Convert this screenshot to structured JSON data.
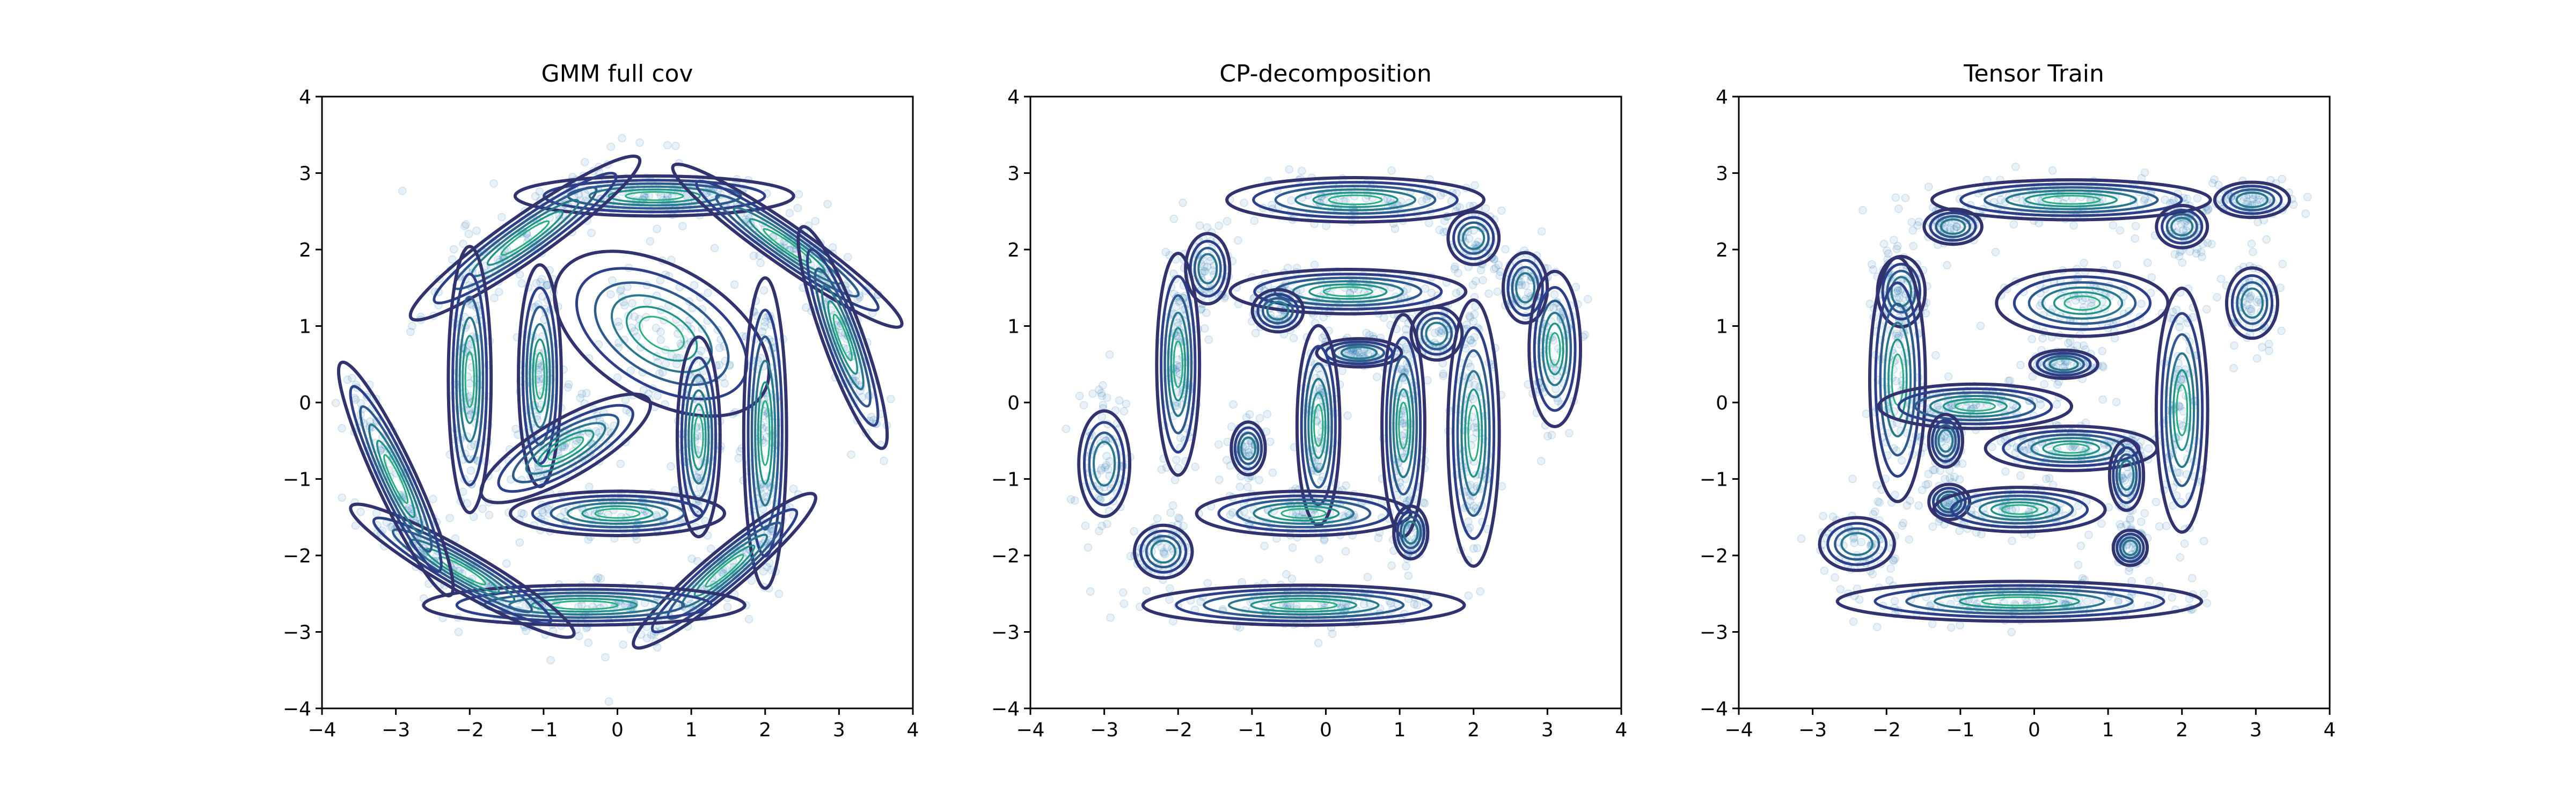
{
  "chart_data": [
    {
      "type": "scatter",
      "title": "GMM full cov",
      "xlabel": "",
      "ylabel": "",
      "xlim": [
        -4,
        4
      ],
      "ylim": [
        -4,
        4
      ],
      "xticks": [
        "−4",
        "−3",
        "−2",
        "−1",
        "0",
        "1",
        "2",
        "3",
        "4"
      ],
      "yticks": [
        "−4",
        "−3",
        "−2",
        "−1",
        "0",
        "1",
        "2",
        "3",
        "4"
      ],
      "grid": false,
      "scatter_color": "#1f77b4",
      "contour_colormap": "viridis",
      "components": [
        {
          "x": 0.5,
          "y": 2.7,
          "sx": 0.65,
          "sy": 0.09,
          "rot": 0
        },
        {
          "x": 2.3,
          "y": 2.05,
          "sx": 0.65,
          "sy": 0.09,
          "rot": -35
        },
        {
          "x": 3.05,
          "y": 0.85,
          "sx": 0.55,
          "sy": 0.09,
          "rot": -70
        },
        {
          "x": -1.25,
          "y": 2.15,
          "sx": 0.65,
          "sy": 0.1,
          "rot": 35
        },
        {
          "x": -2.0,
          "y": 0.3,
          "sx": 0.1,
          "sy": 0.6,
          "rot": 0
        },
        {
          "x": -1.05,
          "y": 0.35,
          "sx": 0.1,
          "sy": 0.5,
          "rot": 0
        },
        {
          "x": 0.6,
          "y": 0.9,
          "sx": 0.55,
          "sy": 0.3,
          "rot": -30
        },
        {
          "x": -0.7,
          "y": -0.6,
          "sx": 0.45,
          "sy": 0.13,
          "rot": 30
        },
        {
          "x": 1.1,
          "y": -0.45,
          "sx": 0.1,
          "sy": 0.45,
          "rot": 0
        },
        {
          "x": 2.0,
          "y": -0.4,
          "sx": 0.1,
          "sy": 0.7,
          "rot": 0
        },
        {
          "x": 0.0,
          "y": -1.45,
          "sx": 0.5,
          "sy": 0.1,
          "rot": 0
        },
        {
          "x": 1.45,
          "y": -2.2,
          "sx": 0.55,
          "sy": 0.09,
          "rot": 40
        },
        {
          "x": -0.45,
          "y": -2.65,
          "sx": 0.75,
          "sy": 0.09,
          "rot": 0
        },
        {
          "x": -2.1,
          "y": -2.2,
          "sx": 0.6,
          "sy": 0.09,
          "rot": -30
        },
        {
          "x": -3.0,
          "y": -1.0,
          "sx": 0.6,
          "sy": 0.09,
          "rot": -65
        }
      ]
    },
    {
      "type": "scatter",
      "title": "CP-decomposition",
      "xlabel": "",
      "ylabel": "",
      "xlim": [
        -4,
        4
      ],
      "ylim": [
        -4,
        4
      ],
      "xticks": [
        "−4",
        "−3",
        "−2",
        "−1",
        "0",
        "1",
        "2",
        "3",
        "4"
      ],
      "yticks": [
        "−4",
        "−3",
        "−2",
        "−1",
        "0",
        "1",
        "2",
        "3",
        "4"
      ],
      "grid": false,
      "scatter_color": "#1f77b4",
      "contour_colormap": "viridis",
      "components": [
        {
          "x": 0.4,
          "y": 2.65,
          "sx": 0.6,
          "sy": 0.1,
          "rot": 0
        },
        {
          "x": 2.0,
          "y": 2.15,
          "sx": 0.15,
          "sy": 0.15,
          "rot": 0
        },
        {
          "x": 2.7,
          "y": 1.5,
          "sx": 0.13,
          "sy": 0.2,
          "rot": 0
        },
        {
          "x": 3.1,
          "y": 0.7,
          "sx": 0.12,
          "sy": 0.35,
          "rot": 0
        },
        {
          "x": -1.6,
          "y": 1.75,
          "sx": 0.13,
          "sy": 0.2,
          "rot": 0
        },
        {
          "x": -2.0,
          "y": 0.5,
          "sx": 0.1,
          "sy": 0.5,
          "rot": 0
        },
        {
          "x": 0.3,
          "y": 1.45,
          "sx": 0.55,
          "sy": 0.1,
          "rot": 0
        },
        {
          "x": -0.65,
          "y": 1.2,
          "sx": 0.15,
          "sy": 0.12,
          "rot": 0
        },
        {
          "x": 1.5,
          "y": 0.9,
          "sx": 0.15,
          "sy": 0.15,
          "rot": 0
        },
        {
          "x": 0.45,
          "y": 0.65,
          "sx": 0.25,
          "sy": 0.08,
          "rot": 0
        },
        {
          "x": -1.05,
          "y": -0.6,
          "sx": 0.1,
          "sy": 0.15,
          "rot": 0
        },
        {
          "x": -0.1,
          "y": -0.3,
          "sx": 0.1,
          "sy": 0.45,
          "rot": 0
        },
        {
          "x": 1.05,
          "y": -0.3,
          "sx": 0.1,
          "sy": 0.5,
          "rot": 0
        },
        {
          "x": 2.0,
          "y": -0.4,
          "sx": 0.12,
          "sy": 0.6,
          "rot": 0
        },
        {
          "x": -0.3,
          "y": -1.45,
          "sx": 0.5,
          "sy": 0.1,
          "rot": 0
        },
        {
          "x": 1.15,
          "y": -1.7,
          "sx": 0.1,
          "sy": 0.15,
          "rot": 0
        },
        {
          "x": -3.0,
          "y": -0.8,
          "sx": 0.15,
          "sy": 0.3,
          "rot": 0
        },
        {
          "x": -2.2,
          "y": -1.95,
          "sx": 0.17,
          "sy": 0.15,
          "rot": 0
        },
        {
          "x": -0.3,
          "y": -2.65,
          "sx": 0.75,
          "sy": 0.09,
          "rot": 0
        }
      ]
    },
    {
      "type": "scatter",
      "title": "Tensor Train",
      "xlabel": "",
      "ylabel": "",
      "xlim": [
        -4,
        4
      ],
      "ylim": [
        -4,
        4
      ],
      "xticks": [
        "−4",
        "−3",
        "−2",
        "−1",
        "0",
        "1",
        "2",
        "3",
        "4"
      ],
      "yticks": [
        "−4",
        "−3",
        "−2",
        "−1",
        "0",
        "1",
        "2",
        "3",
        "4"
      ],
      "grid": false,
      "scatter_color": "#1f77b4",
      "contour_colormap": "viridis",
      "components": [
        {
          "x": 0.5,
          "y": 2.65,
          "sx": 0.65,
          "sy": 0.09,
          "rot": 0
        },
        {
          "x": -1.1,
          "y": 2.3,
          "sx": 0.17,
          "sy": 0.1,
          "rot": 0
        },
        {
          "x": 2.0,
          "y": 2.3,
          "sx": 0.15,
          "sy": 0.12,
          "rot": 0
        },
        {
          "x": 2.95,
          "y": 2.65,
          "sx": 0.22,
          "sy": 0.1,
          "rot": 0
        },
        {
          "x": 2.95,
          "y": 1.3,
          "sx": 0.15,
          "sy": 0.2,
          "rot": 0
        },
        {
          "x": -1.8,
          "y": 1.45,
          "sx": 0.14,
          "sy": 0.2,
          "rot": 0
        },
        {
          "x": -1.85,
          "y": 0.3,
          "sx": 0.13,
          "sy": 0.55,
          "rot": 0
        },
        {
          "x": 0.65,
          "y": 1.3,
          "sx": 0.4,
          "sy": 0.15,
          "rot": 0
        },
        {
          "x": 0.4,
          "y": 0.5,
          "sx": 0.2,
          "sy": 0.08,
          "rot": 0
        },
        {
          "x": -0.8,
          "y": -0.05,
          "sx": 0.45,
          "sy": 0.1,
          "rot": 0
        },
        {
          "x": -1.2,
          "y": -0.5,
          "sx": 0.1,
          "sy": 0.15,
          "rot": 0
        },
        {
          "x": 0.5,
          "y": -0.6,
          "sx": 0.4,
          "sy": 0.1,
          "rot": 0
        },
        {
          "x": 1.25,
          "y": -0.95,
          "sx": 0.1,
          "sy": 0.2,
          "rot": 0
        },
        {
          "x": -1.15,
          "y": -1.3,
          "sx": 0.12,
          "sy": 0.1,
          "rot": 0
        },
        {
          "x": -0.2,
          "y": -1.4,
          "sx": 0.4,
          "sy": 0.1,
          "rot": 0
        },
        {
          "x": 2.0,
          "y": -0.1,
          "sx": 0.12,
          "sy": 0.55,
          "rot": 0
        },
        {
          "x": 1.3,
          "y": -1.9,
          "sx": 0.1,
          "sy": 0.1,
          "rot": 0
        },
        {
          "x": -2.4,
          "y": -1.85,
          "sx": 0.22,
          "sy": 0.15,
          "rot": 0
        },
        {
          "x": -0.2,
          "y": -2.6,
          "sx": 0.85,
          "sy": 0.09,
          "rot": 0
        }
      ]
    }
  ]
}
